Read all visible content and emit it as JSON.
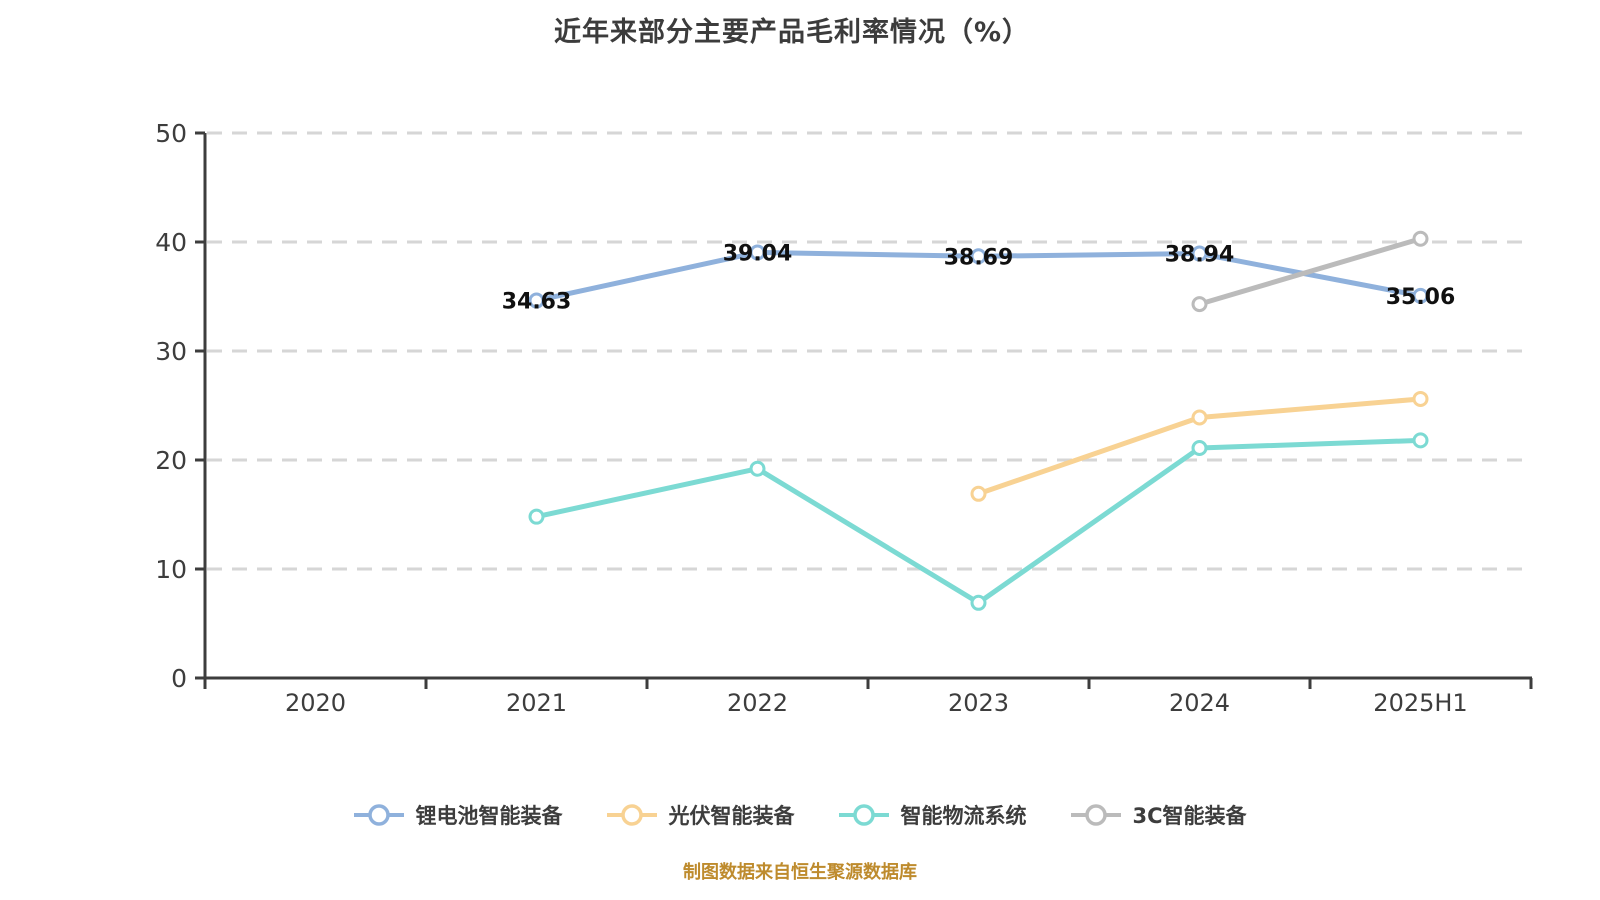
{
  "title": "近年来部分主要产品毛利率情况（%）",
  "footer": "制图数据来自恒生聚源数据库",
  "colors": {
    "axis": "#3d3d3d",
    "tick_label": "#3d3d3d",
    "grid": "#d6d6d6",
    "data_label": "#101010",
    "marker_fill": "#ffffff",
    "footer_text": "#be8b2d",
    "background": "#ffffff"
  },
  "chart_data": {
    "type": "line",
    "title": "近年来部分主要产品毛利率情况（%）",
    "xlabel": "",
    "ylabel": "",
    "categories": [
      "2020",
      "2021",
      "2022",
      "2023",
      "2024",
      "2025H1"
    ],
    "ylim": [
      0,
      50
    ],
    "yticks": [
      0,
      10,
      20,
      30,
      40,
      50
    ],
    "grid": true,
    "grid_style": "dashed",
    "legend_position": "bottom",
    "series": [
      {
        "name": "锂电池智能装备",
        "color": "#8fb1dc",
        "values": [
          null,
          34.63,
          39.04,
          38.69,
          38.94,
          35.06
        ],
        "point_labels": [
          null,
          "34.63",
          "39.04",
          "38.69",
          "38.94",
          "35.06"
        ]
      },
      {
        "name": "光伏智能装备",
        "color": "#f8d293",
        "values": [
          null,
          null,
          null,
          16.9,
          23.9,
          25.6
        ],
        "point_labels": null
      },
      {
        "name": "智能物流系统",
        "color": "#7cdad3",
        "values": [
          null,
          14.8,
          19.2,
          6.9,
          21.1,
          21.8
        ],
        "point_labels": null
      },
      {
        "name": "3C智能装备",
        "color": "#bbbbbb",
        "values": [
          null,
          null,
          null,
          null,
          34.3,
          40.3
        ],
        "point_labels": null
      }
    ]
  }
}
